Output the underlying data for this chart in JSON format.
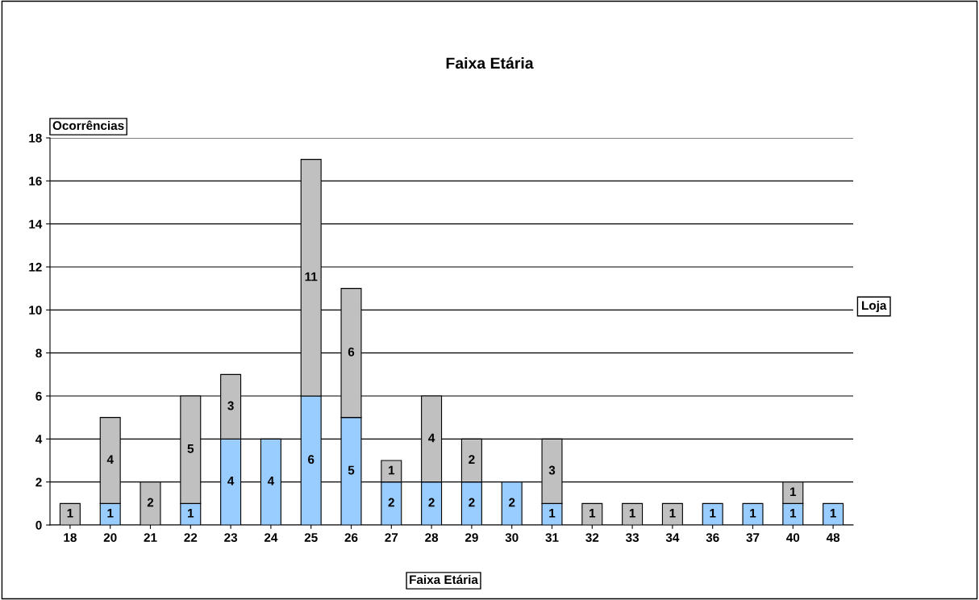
{
  "chart_data": {
    "type": "bar",
    "title": "Faixa Etária",
    "xlabel": "Faixa Etária",
    "ylabel": "Ocorrências",
    "legend_title": "Loja",
    "categories": [
      "18",
      "20",
      "21",
      "22",
      "23",
      "24",
      "25",
      "26",
      "27",
      "28",
      "29",
      "30",
      "31",
      "32",
      "33",
      "34",
      "36",
      "37",
      "40",
      "48"
    ],
    "stacked": true,
    "series": [
      {
        "color": "#99ccff",
        "values": [
          null,
          1,
          null,
          1,
          4,
          4,
          6,
          5,
          2,
          2,
          2,
          2,
          1,
          null,
          null,
          null,
          1,
          1,
          1,
          1
        ]
      },
      {
        "color": "#c0c0c0",
        "values": [
          1,
          4,
          2,
          5,
          3,
          null,
          11,
          6,
          1,
          4,
          2,
          null,
          3,
          1,
          1,
          1,
          null,
          null,
          1,
          null
        ]
      }
    ],
    "ylim": [
      0,
      18
    ],
    "yticks": [
      0,
      2,
      4,
      6,
      8,
      10,
      12,
      14,
      16,
      18
    ],
    "grid": "y",
    "data_labels": true
  }
}
